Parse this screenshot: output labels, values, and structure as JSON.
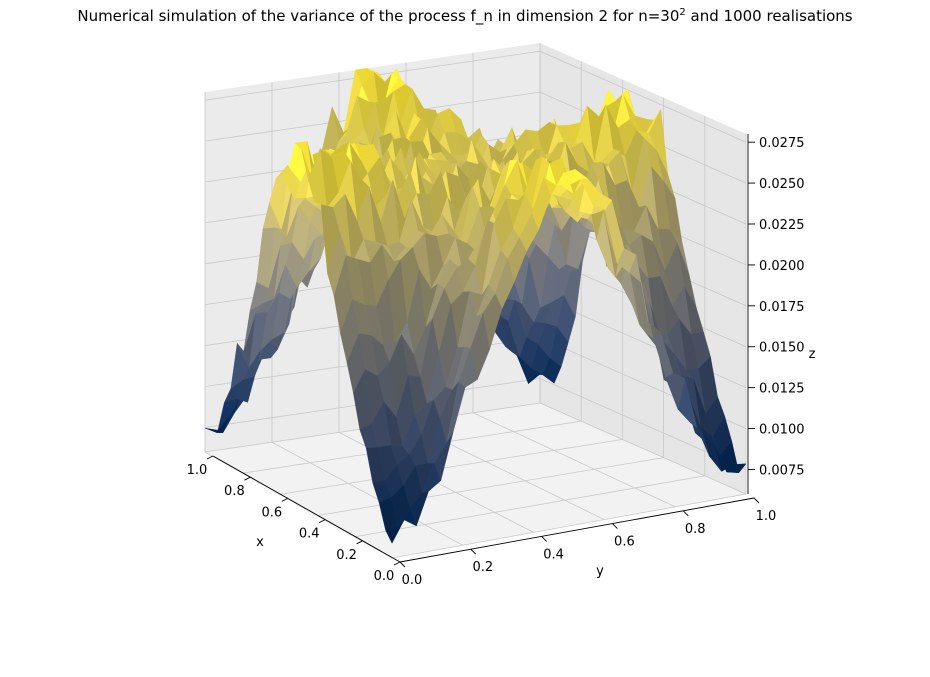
{
  "title": {
    "prefix": "Numerical simulation of the variance of the process f_n in dimension 2 for n=30",
    "superscript": "2",
    "suffix": " and 1000 realisations"
  },
  "chart_data": {
    "type": "surface",
    "colormap": "cividis",
    "grid": true,
    "xlabel": "x",
    "ylabel": "y",
    "zlabel": "z",
    "xlim": [
      0,
      1
    ],
    "ylim": [
      0,
      1
    ],
    "zlim": [
      0.006,
      0.028
    ],
    "x_ticks": [
      "0.0",
      "0.2",
      "0.4",
      "0.6",
      "0.8",
      "1.0"
    ],
    "y_ticks": [
      "0.0",
      "0.2",
      "0.4",
      "0.6",
      "0.8",
      "1.0"
    ],
    "z_ticks": [
      "0.0075",
      "0.0100",
      "0.0125",
      "0.0150",
      "0.0175",
      "0.0200",
      "0.0225",
      "0.0250",
      "0.0275"
    ],
    "grid_points_per_axis": 30,
    "surface_description": "Variance is low (~0.0075) near the edges x=0, x=1, y=0, y=1 and rises to ~0.027 near the centre lines x=0.5 and y=0.5, with a dip at the centre (0.5,0.5) around 0.018; noisy Monte Carlo estimate"
  }
}
